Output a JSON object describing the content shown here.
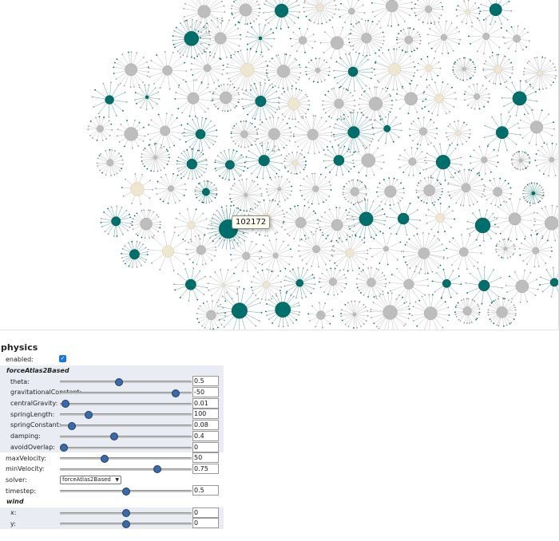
{
  "tooltip": {
    "text": "102172"
  },
  "graph": {
    "colors": {
      "teal": "#006e6a",
      "gray": "#bdbdbd",
      "beige": "#efe6cf",
      "edge": "#b0b0b0",
      "edgeTeal": "#3f8f8c"
    }
  },
  "physics": {
    "title": "physics",
    "enabled_label": "enabled:",
    "enabled": true,
    "section_forceatlas": "forceAtlas2Based",
    "params": [
      {
        "label": "theta:",
        "value": "0.5",
        "fraction": 0.45
      },
      {
        "label": "gravitationalConstant:",
        "value": "-50",
        "fraction": 0.88
      },
      {
        "label": "centralGravity:",
        "value": "0.01",
        "fraction": 0.04
      },
      {
        "label": "springLength:",
        "value": "100",
        "fraction": 0.22
      },
      {
        "label": "springConstant:",
        "value": "0.08",
        "fraction": 0.09
      },
      {
        "label": "damping:",
        "value": "0.4",
        "fraction": 0.41
      },
      {
        "label": "avoidOverlap:",
        "value": "0",
        "fraction": 0.03
      }
    ],
    "maxVelocity": {
      "label": "maxVelocity:",
      "value": "50",
      "fraction": 0.34
    },
    "minVelocity": {
      "label": "minVelocity:",
      "value": "0.75",
      "fraction": 0.74
    },
    "solver": {
      "label": "solver:",
      "value": "forceAtlas2Based"
    },
    "timestep": {
      "label": "timestep:",
      "value": "0.5",
      "fraction": 0.5
    },
    "section_wind": "wind",
    "wind": [
      {
        "label": "x:",
        "value": "0",
        "fraction": 0.5
      },
      {
        "label": "y:",
        "value": "0",
        "fraction": 0.5
      }
    ]
  }
}
